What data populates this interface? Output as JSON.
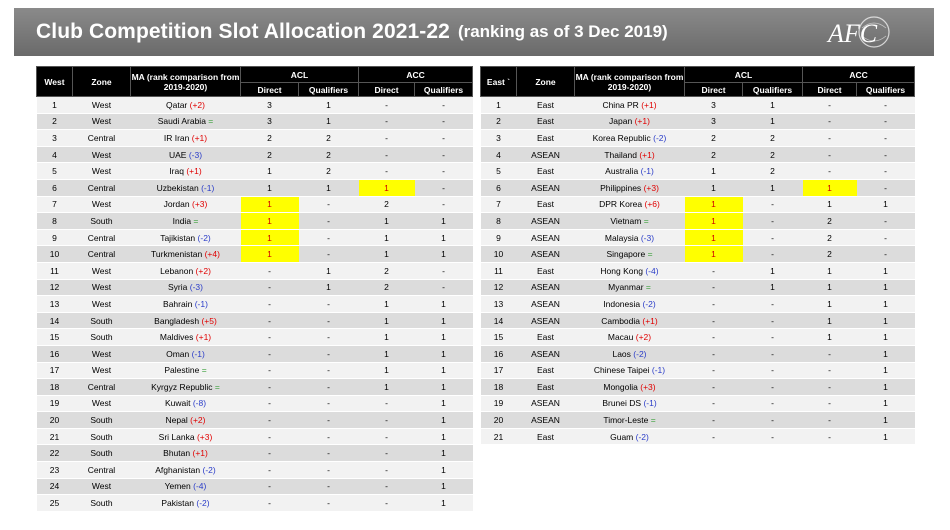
{
  "header": {
    "title": "Club Competition Slot Allocation 2021-22",
    "subtitle": "(ranking as of 3 Dec 2019)",
    "logo_text": "AFC"
  },
  "west": {
    "headers": {
      "rank": "West",
      "zone": "Zone",
      "ma": "MA (rank comparison from 2019-2020)",
      "acl": "ACL",
      "acc": "ACC",
      "direct": "Direct",
      "qualifiers": "Qualifiers"
    },
    "rows": [
      {
        "rank": "1",
        "zone": "West",
        "ma": "Qatar",
        "chg": "(+2)",
        "chg_type": "red",
        "acl_d": "3",
        "acl_q": "1",
        "acc_d": "-",
        "acc_q": "-",
        "hl": ""
      },
      {
        "rank": "2",
        "zone": "West",
        "ma": "Saudi Arabia",
        "chg": "=",
        "chg_type": "green",
        "acl_d": "3",
        "acl_q": "1",
        "acc_d": "-",
        "acc_q": "-",
        "hl": ""
      },
      {
        "rank": "3",
        "zone": "Central",
        "ma": "IR Iran",
        "chg": "(+1)",
        "chg_type": "red",
        "acl_d": "2",
        "acl_q": "2",
        "acc_d": "-",
        "acc_q": "-",
        "hl": ""
      },
      {
        "rank": "4",
        "zone": "West",
        "ma": "UAE",
        "chg": "(-3)",
        "chg_type": "blue",
        "acl_d": "2",
        "acl_q": "2",
        "acc_d": "-",
        "acc_q": "-",
        "hl": ""
      },
      {
        "rank": "5",
        "zone": "West",
        "ma": "Iraq",
        "chg": "(+1)",
        "chg_type": "red",
        "acl_d": "1",
        "acl_q": "2",
        "acc_d": "-",
        "acc_q": "-",
        "hl": ""
      },
      {
        "rank": "6",
        "zone": "Central",
        "ma": "Uzbekistan",
        "chg": "(-1)",
        "chg_type": "blue",
        "acl_d": "1",
        "acl_q": "1",
        "acc_d": "1",
        "acc_q": "-",
        "hl": "acc_d"
      },
      {
        "rank": "7",
        "zone": "West",
        "ma": "Jordan",
        "chg": "(+3)",
        "chg_type": "red",
        "acl_d": "1",
        "acl_q": "-",
        "acc_d": "2",
        "acc_q": "-",
        "hl": "acl_d"
      },
      {
        "rank": "8",
        "zone": "South",
        "ma": "India",
        "chg": "=",
        "chg_type": "green",
        "acl_d": "1",
        "acl_q": "-",
        "acc_d": "1",
        "acc_q": "1",
        "hl": "acl_d"
      },
      {
        "rank": "9",
        "zone": "Central",
        "ma": "Tajikistan",
        "chg": "(-2)",
        "chg_type": "blue",
        "acl_d": "1",
        "acl_q": "-",
        "acc_d": "1",
        "acc_q": "1",
        "hl": "acl_d"
      },
      {
        "rank": "10",
        "zone": "Central",
        "ma": "Turkmenistan",
        "chg": "(+4)",
        "chg_type": "red",
        "acl_d": "1",
        "acl_q": "-",
        "acc_d": "1",
        "acc_q": "1",
        "hl": "acl_d"
      },
      {
        "rank": "11",
        "zone": "West",
        "ma": "Lebanon",
        "chg": "(+2)",
        "chg_type": "red",
        "acl_d": "-",
        "acl_q": "1",
        "acc_d": "2",
        "acc_q": "-",
        "hl": ""
      },
      {
        "rank": "12",
        "zone": "West",
        "ma": "Syria",
        "chg": "(-3)",
        "chg_type": "blue",
        "acl_d": "-",
        "acl_q": "1",
        "acc_d": "2",
        "acc_q": "-",
        "hl": ""
      },
      {
        "rank": "13",
        "zone": "West",
        "ma": "Bahrain",
        "chg": "(-1)",
        "chg_type": "blue",
        "acl_d": "-",
        "acl_q": "-",
        "acc_d": "1",
        "acc_q": "1",
        "hl": ""
      },
      {
        "rank": "14",
        "zone": "South",
        "ma": "Bangladesh",
        "chg": "(+5)",
        "chg_type": "red",
        "acl_d": "-",
        "acl_q": "-",
        "acc_d": "1",
        "acc_q": "1",
        "hl": ""
      },
      {
        "rank": "15",
        "zone": "South",
        "ma": "Maldives",
        "chg": "(+1)",
        "chg_type": "red",
        "acl_d": "-",
        "acl_q": "-",
        "acc_d": "1",
        "acc_q": "1",
        "hl": ""
      },
      {
        "rank": "16",
        "zone": "West",
        "ma": "Oman",
        "chg": "(-1)",
        "chg_type": "blue",
        "acl_d": "-",
        "acl_q": "-",
        "acc_d": "1",
        "acc_q": "1",
        "hl": ""
      },
      {
        "rank": "17",
        "zone": "West",
        "ma": "Palestine",
        "chg": "=",
        "chg_type": "green",
        "acl_d": "-",
        "acl_q": "-",
        "acc_d": "1",
        "acc_q": "1",
        "hl": ""
      },
      {
        "rank": "18",
        "zone": "Central",
        "ma": "Kyrgyz Republic",
        "chg": "=",
        "chg_type": "green",
        "acl_d": "-",
        "acl_q": "-",
        "acc_d": "1",
        "acc_q": "1",
        "hl": ""
      },
      {
        "rank": "19",
        "zone": "West",
        "ma": "Kuwait",
        "chg": "(-8)",
        "chg_type": "blue",
        "acl_d": "-",
        "acl_q": "-",
        "acc_d": "-",
        "acc_q": "1",
        "hl": ""
      },
      {
        "rank": "20",
        "zone": "South",
        "ma": "Nepal",
        "chg": "(+2)",
        "chg_type": "red",
        "acl_d": "-",
        "acl_q": "-",
        "acc_d": "-",
        "acc_q": "1",
        "hl": ""
      },
      {
        "rank": "21",
        "zone": "South",
        "ma": "Sri Lanka",
        "chg": "(+3)",
        "chg_type": "red",
        "acl_d": "-",
        "acl_q": "-",
        "acc_d": "-",
        "acc_q": "1",
        "hl": ""
      },
      {
        "rank": "22",
        "zone": "South",
        "ma": "Bhutan",
        "chg": "(+1)",
        "chg_type": "red",
        "acl_d": "-",
        "acl_q": "-",
        "acc_d": "-",
        "acc_q": "1",
        "hl": ""
      },
      {
        "rank": "23",
        "zone": "Central",
        "ma": "Afghanistan",
        "chg": "(-2)",
        "chg_type": "blue",
        "acl_d": "-",
        "acl_q": "-",
        "acc_d": "-",
        "acc_q": "1",
        "hl": ""
      },
      {
        "rank": "24",
        "zone": "West",
        "ma": "Yemen",
        "chg": "(-4)",
        "chg_type": "blue",
        "acl_d": "-",
        "acl_q": "-",
        "acc_d": "-",
        "acc_q": "1",
        "hl": ""
      },
      {
        "rank": "25",
        "zone": "South",
        "ma": "Pakistan",
        "chg": "(-2)",
        "chg_type": "blue",
        "acl_d": "-",
        "acl_q": "-",
        "acc_d": "-",
        "acc_q": "1",
        "hl": ""
      }
    ]
  },
  "east": {
    "headers": {
      "rank": "East `",
      "zone": "Zone",
      "ma": "MA (rank comparison from 2019-2020)",
      "acl": "ACL",
      "acc": "ACC",
      "direct": "Direct",
      "qualifiers": "Qualifiers"
    },
    "rows": [
      {
        "rank": "1",
        "zone": "East",
        "ma": "China PR",
        "chg": "(+1)",
        "chg_type": "red",
        "acl_d": "3",
        "acl_q": "1",
        "acc_d": "-",
        "acc_q": "-",
        "hl": ""
      },
      {
        "rank": "2",
        "zone": "East",
        "ma": "Japan",
        "chg": "(+1)",
        "chg_type": "red",
        "acl_d": "3",
        "acl_q": "1",
        "acc_d": "-",
        "acc_q": "-",
        "hl": ""
      },
      {
        "rank": "3",
        "zone": "East",
        "ma": "Korea Republic",
        "chg": "(-2)",
        "chg_type": "blue",
        "acl_d": "2",
        "acl_q": "2",
        "acc_d": "-",
        "acc_q": "-",
        "hl": ""
      },
      {
        "rank": "4",
        "zone": "ASEAN",
        "ma": "Thailand",
        "chg": "(+1)",
        "chg_type": "red",
        "acl_d": "2",
        "acl_q": "2",
        "acc_d": "-",
        "acc_q": "-",
        "hl": ""
      },
      {
        "rank": "5",
        "zone": "East",
        "ma": "Australia",
        "chg": "(-1)",
        "chg_type": "blue",
        "acl_d": "1",
        "acl_q": "2",
        "acc_d": "-",
        "acc_q": "-",
        "hl": ""
      },
      {
        "rank": "6",
        "zone": "ASEAN",
        "ma": "Philippines",
        "chg": "(+3)",
        "chg_type": "red",
        "acl_d": "1",
        "acl_q": "1",
        "acc_d": "1",
        "acc_q": "-",
        "hl": "acc_d"
      },
      {
        "rank": "7",
        "zone": "East",
        "ma": "DPR Korea",
        "chg": "(+6)",
        "chg_type": "red",
        "acl_d": "1",
        "acl_q": "-",
        "acc_d": "1",
        "acc_q": "1",
        "hl": "acl_d"
      },
      {
        "rank": "8",
        "zone": "ASEAN",
        "ma": "Vietnam",
        "chg": "=",
        "chg_type": "green",
        "acl_d": "1",
        "acl_q": "-",
        "acc_d": "2",
        "acc_q": "-",
        "hl": "acl_d"
      },
      {
        "rank": "9",
        "zone": "ASEAN",
        "ma": "Malaysia",
        "chg": "(-3)",
        "chg_type": "blue",
        "acl_d": "1",
        "acl_q": "-",
        "acc_d": "2",
        "acc_q": "-",
        "hl": "acl_d"
      },
      {
        "rank": "10",
        "zone": "ASEAN",
        "ma": "Singapore",
        "chg": "=",
        "chg_type": "green",
        "acl_d": "1",
        "acl_q": "-",
        "acc_d": "2",
        "acc_q": "-",
        "hl": "acl_d"
      },
      {
        "rank": "11",
        "zone": "East",
        "ma": "Hong Kong",
        "chg": "(-4)",
        "chg_type": "blue",
        "acl_d": "-",
        "acl_q": "1",
        "acc_d": "1",
        "acc_q": "1",
        "hl": ""
      },
      {
        "rank": "12",
        "zone": "ASEAN",
        "ma": "Myanmar",
        "chg": "=",
        "chg_type": "green",
        "acl_d": "-",
        "acl_q": "1",
        "acc_d": "1",
        "acc_q": "1",
        "hl": ""
      },
      {
        "rank": "13",
        "zone": "ASEAN",
        "ma": "Indonesia",
        "chg": "(-2)",
        "chg_type": "blue",
        "acl_d": "-",
        "acl_q": "-",
        "acc_d": "1",
        "acc_q": "1",
        "hl": ""
      },
      {
        "rank": "14",
        "zone": "ASEAN",
        "ma": "Cambodia",
        "chg": "(+1)",
        "chg_type": "red",
        "acl_d": "-",
        "acl_q": "-",
        "acc_d": "1",
        "acc_q": "1",
        "hl": ""
      },
      {
        "rank": "15",
        "zone": "East",
        "ma": "Macau",
        "chg": "(+2)",
        "chg_type": "red",
        "acl_d": "-",
        "acl_q": "-",
        "acc_d": "1",
        "acc_q": "1",
        "hl": ""
      },
      {
        "rank": "16",
        "zone": "ASEAN",
        "ma": "Laos",
        "chg": "(-2)",
        "chg_type": "blue",
        "acl_d": "-",
        "acl_q": "-",
        "acc_d": "-",
        "acc_q": "1",
        "hl": ""
      },
      {
        "rank": "17",
        "zone": "East",
        "ma": "Chinese Taipei",
        "chg": "(-1)",
        "chg_type": "blue",
        "acl_d": "-",
        "acl_q": "-",
        "acc_d": "-",
        "acc_q": "1",
        "hl": ""
      },
      {
        "rank": "18",
        "zone": "East",
        "ma": "Mongolia",
        "chg": "(+3)",
        "chg_type": "red",
        "acl_d": "-",
        "acl_q": "-",
        "acc_d": "-",
        "acc_q": "1",
        "hl": ""
      },
      {
        "rank": "19",
        "zone": "ASEAN",
        "ma": "Brunei DS",
        "chg": "(-1)",
        "chg_type": "blue",
        "acl_d": "-",
        "acl_q": "-",
        "acc_d": "-",
        "acc_q": "1",
        "hl": ""
      },
      {
        "rank": "20",
        "zone": "ASEAN",
        "ma": "Timor-Leste",
        "chg": "=",
        "chg_type": "green",
        "acl_d": "-",
        "acl_q": "-",
        "acc_d": "-",
        "acc_q": "1",
        "hl": ""
      },
      {
        "rank": "21",
        "zone": "East",
        "ma": "Guam",
        "chg": "(-2)",
        "chg_type": "blue",
        "acl_d": "-",
        "acl_q": "-",
        "acc_d": "-",
        "acc_q": "1",
        "hl": ""
      }
    ]
  }
}
